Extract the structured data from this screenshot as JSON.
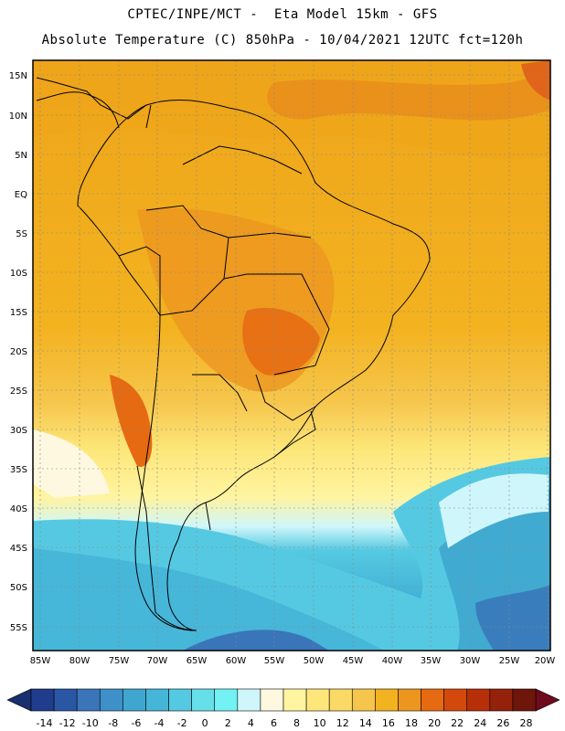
{
  "header": {
    "line1": "CPTEC/INPE/MCT -  Eta Model 15km - GFS",
    "line2": "Absolute Temperature (C) 850hPa - 10/04/2021 12UTC fct=120h"
  },
  "axes": {
    "lat_labels": [
      "15N",
      "10N",
      "5N",
      "EQ",
      "5S",
      "10S",
      "15S",
      "20S",
      "25S",
      "30S",
      "35S",
      "40S",
      "45S",
      "50S",
      "55S"
    ],
    "lon_labels": [
      "85W",
      "80W",
      "75W",
      "70W",
      "65W",
      "60W",
      "55W",
      "50W",
      "45W",
      "40W",
      "35W",
      "30W",
      "25W",
      "20W"
    ]
  },
  "legend": {
    "ticks": [
      "-14",
      "-12",
      "-10",
      "-8",
      "-6",
      "-4",
      "-2",
      "0",
      "2",
      "4",
      "6",
      "8",
      "10",
      "12",
      "14",
      "16",
      "18",
      "20",
      "22",
      "24",
      "26",
      "28"
    ],
    "colors": [
      "#1f3d8c",
      "#2a57a4",
      "#3a75b9",
      "#3f8fc8",
      "#3fa6cf",
      "#45b5d8",
      "#56c9e2",
      "#66dfe9",
      "#72f2f2",
      "#cff6fa",
      "#fff8e0",
      "#fff4a0",
      "#fde77a",
      "#fad965",
      "#f6c64c",
      "#f3b21f",
      "#ec9620",
      "#e56a12",
      "#d3490c",
      "#b62f08",
      "#94210a",
      "#6e160a",
      "#ffffff"
    ],
    "under_color": "#1a2f70",
    "over_color": "#6e0b1c"
  }
}
